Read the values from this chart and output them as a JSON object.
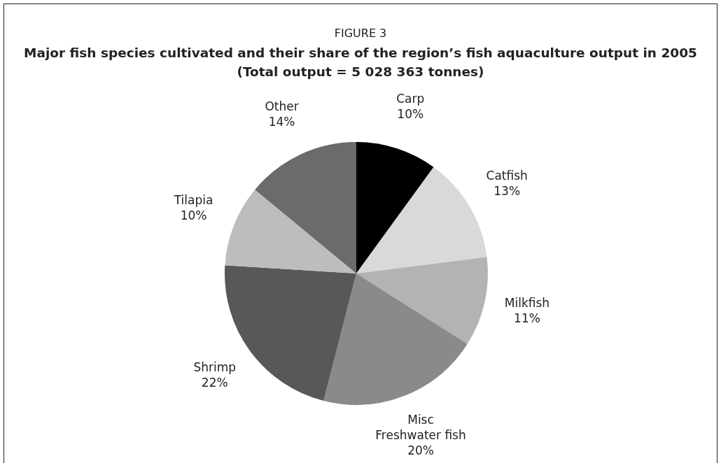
{
  "chart_data": {
    "type": "pie",
    "title": "FIGURE 3",
    "subtitle": "Major fish species cultivated and their share of the region’s fish aquaculture output in 2005\n(Total output = 5 028 363 tonnes)",
    "categories": [
      "Carp",
      "Catfish",
      "Milkfish",
      "Misc Freshwater fish",
      "Shrimp",
      "Tilapia",
      "Other"
    ],
    "values": [
      10,
      13,
      11,
      20,
      22,
      10,
      14
    ],
    "value_labels": [
      "10%",
      "13%",
      "11%",
      "20%",
      "22%",
      "10%",
      "14%"
    ],
    "colors": [
      "#000000",
      "#d9d9d9",
      "#b3b3b3",
      "#8a8a8a",
      "#58585a",
      "#bdbdbd",
      "#6b6b6d"
    ],
    "legend": false
  }
}
